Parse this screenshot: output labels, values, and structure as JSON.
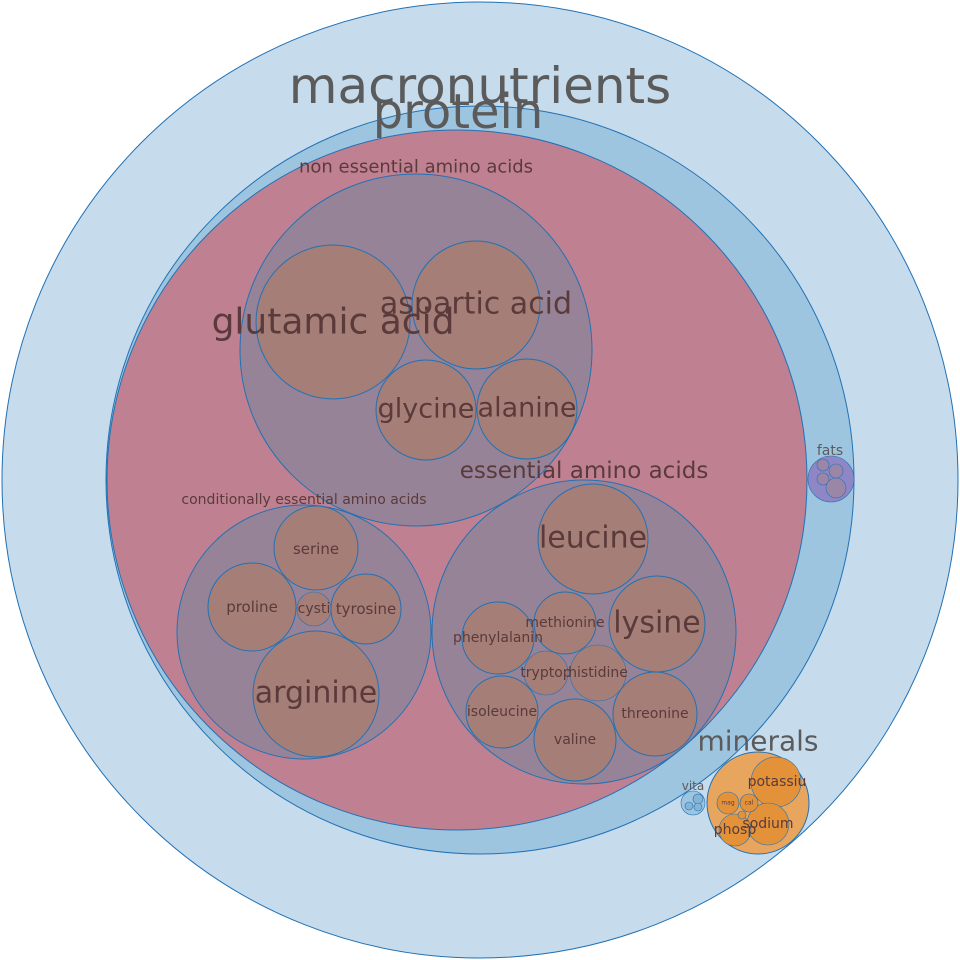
{
  "diagram": {
    "type": "circle-packing",
    "root": "macronutrients",
    "nodes": [
      {
        "id": "macronutrients",
        "label": "macronutrients",
        "parent": null,
        "fill": "#c6dcec"
      },
      {
        "id": "protein",
        "label": "protein",
        "parent": "macronutrients",
        "fill": "#9ec5e0"
      },
      {
        "id": "amino",
        "label": "",
        "parent": "protein",
        "fill": "#bf8191"
      },
      {
        "id": "nonessential",
        "label": "non essential amino acids",
        "parent": "amino",
        "fill": "#978397"
      },
      {
        "id": "glutamic",
        "label": "glutamic acid",
        "parent": "nonessential",
        "fill": "#a57e78"
      },
      {
        "id": "aspartic",
        "label": "aspartic acid",
        "parent": "nonessential",
        "fill": "#a57e78"
      },
      {
        "id": "glycine",
        "label": "glycine",
        "parent": "nonessential",
        "fill": "#a57e78"
      },
      {
        "id": "alanine",
        "label": "alanine",
        "parent": "nonessential",
        "fill": "#a57e78"
      },
      {
        "id": "conditional",
        "label": "conditionally essential amino acids",
        "parent": "amino",
        "fill": "#978397"
      },
      {
        "id": "serine",
        "label": "serine",
        "parent": "conditional",
        "fill": "#a57e78"
      },
      {
        "id": "proline",
        "label": "proline",
        "parent": "conditional",
        "fill": "#a57e78"
      },
      {
        "id": "cystine",
        "label": "cysti",
        "parent": "conditional",
        "fill": "#a57e78"
      },
      {
        "id": "tyrosine",
        "label": "tyrosine",
        "parent": "conditional",
        "fill": "#a57e78"
      },
      {
        "id": "arginine",
        "label": "arginine",
        "parent": "conditional",
        "fill": "#a57e78"
      },
      {
        "id": "essential",
        "label": "essential amino acids",
        "parent": "amino",
        "fill": "#978397"
      },
      {
        "id": "leucine",
        "label": "leucine",
        "parent": "essential",
        "fill": "#a57e78"
      },
      {
        "id": "lysine",
        "label": "lysine",
        "parent": "essential",
        "fill": "#a57e78"
      },
      {
        "id": "methionine",
        "label": "methionine",
        "parent": "essential",
        "fill": "#a57e78"
      },
      {
        "id": "phenylalanine",
        "label": "phenylalanin",
        "parent": "essential",
        "fill": "#a57e78"
      },
      {
        "id": "tryptophan",
        "label": "tryptop",
        "parent": "essential",
        "fill": "#a57e78"
      },
      {
        "id": "histidine",
        "label": "histidine",
        "parent": "essential",
        "fill": "#a57e78"
      },
      {
        "id": "isoleucine",
        "label": "isoleucine",
        "parent": "essential",
        "fill": "#a57e78"
      },
      {
        "id": "threonine",
        "label": "threonine",
        "parent": "essential",
        "fill": "#a57e78"
      },
      {
        "id": "valine",
        "label": "valine",
        "parent": "essential",
        "fill": "#a57e78"
      },
      {
        "id": "fats",
        "label": "fats",
        "parent": "macronutrients",
        "fill": "#8f87c5"
      },
      {
        "id": "fats_a",
        "label": "",
        "parent": "fats",
        "fill": "#9c86a8"
      },
      {
        "id": "fats_b",
        "label": "",
        "parent": "fats",
        "fill": "#9c86a8"
      },
      {
        "id": "fats_c",
        "label": "",
        "parent": "fats",
        "fill": "#9c86a8"
      },
      {
        "id": "fats_d",
        "label": "",
        "parent": "fats",
        "fill": "#9c86a8"
      },
      {
        "id": "minerals",
        "label": "minerals",
        "parent": "macronutrients",
        "fill": "#e8a55e"
      },
      {
        "id": "potassium",
        "label": "potassiu",
        "parent": "minerals",
        "fill": "#e3923a"
      },
      {
        "id": "sodium",
        "label": "sodium",
        "parent": "minerals",
        "fill": "#e3923a"
      },
      {
        "id": "phosphorus",
        "label": "phosp",
        "parent": "minerals",
        "fill": "#e3923a"
      },
      {
        "id": "magnesium",
        "label": "mag",
        "parent": "minerals",
        "fill": "#e3923a"
      },
      {
        "id": "calcium",
        "label": "cal",
        "parent": "minerals",
        "fill": "#e3923a"
      },
      {
        "id": "mineral_trace",
        "label": "",
        "parent": "minerals",
        "fill": "#e3923a"
      },
      {
        "id": "vitamins",
        "label": "vita",
        "parent": "macronutrients",
        "fill": "#9ec5e0"
      },
      {
        "id": "vit_a",
        "label": "",
        "parent": "vitamins",
        "fill": "#86b4d4"
      },
      {
        "id": "vit_b",
        "label": "",
        "parent": "vitamins",
        "fill": "#86b4d4"
      },
      {
        "id": "vit_c",
        "label": "",
        "parent": "vitamins",
        "fill": "#86b4d4"
      }
    ],
    "colors": {
      "stroke": "#2171b5",
      "group_label": "#5b5b5b",
      "leaf_label": "#5a3a3a"
    }
  }
}
